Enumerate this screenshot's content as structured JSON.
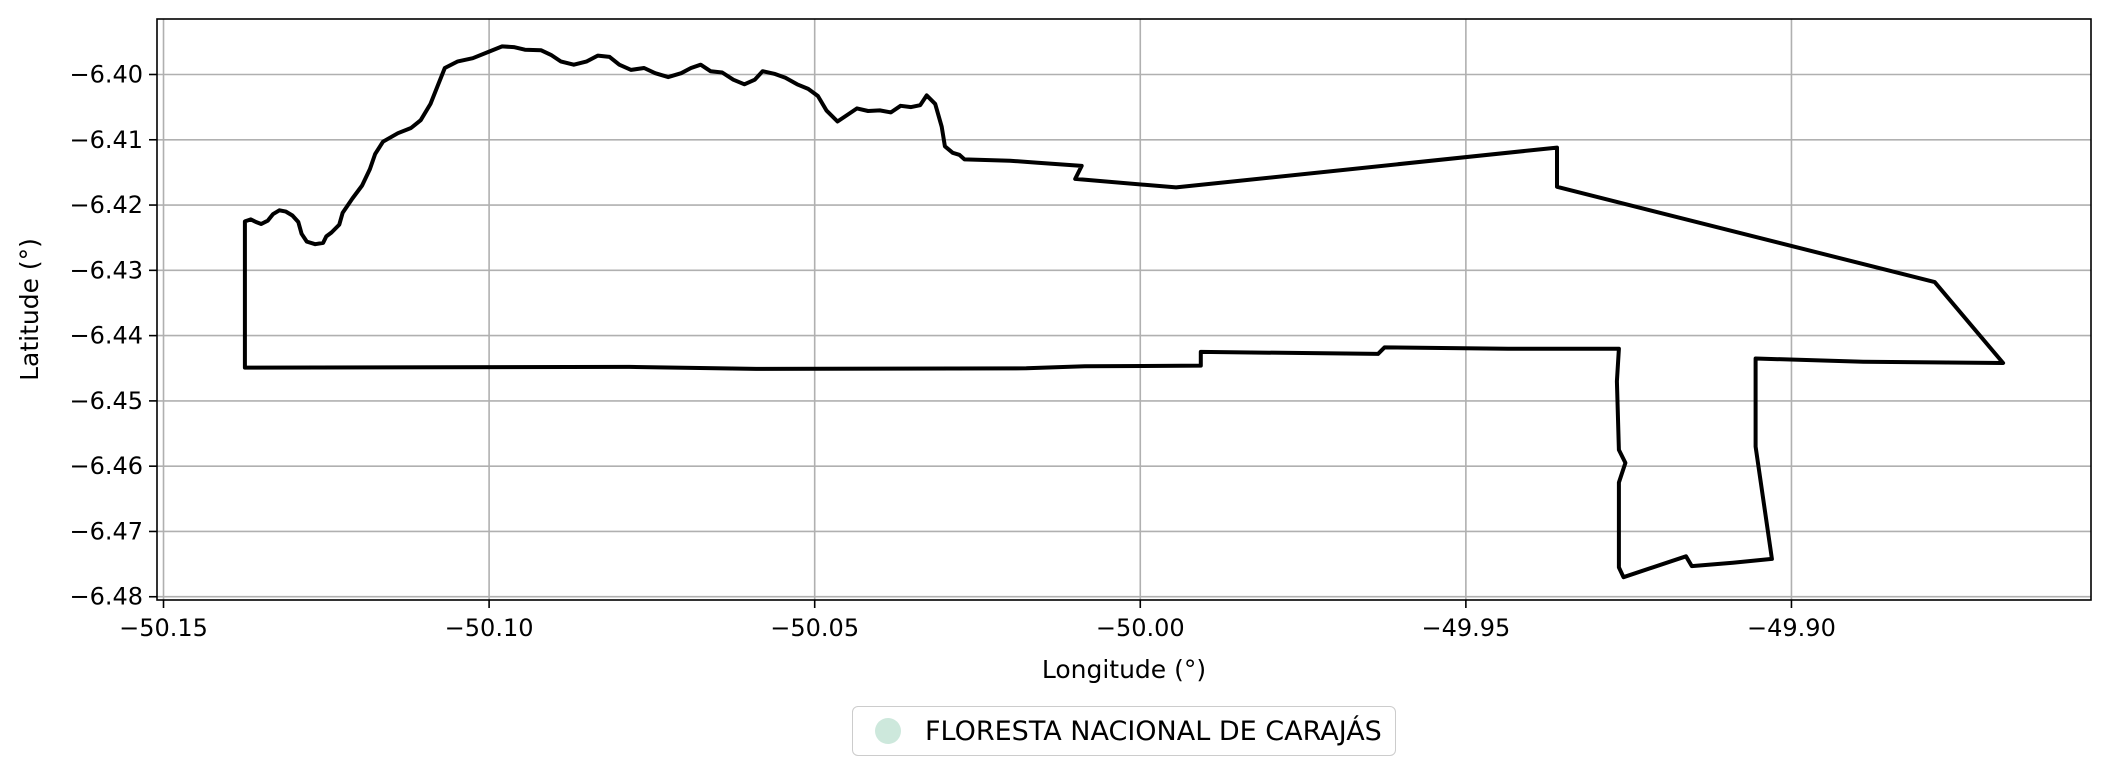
{
  "chart_data": {
    "type": "map",
    "title": "",
    "xlabel": "Longitude (°)",
    "ylabel": "Latitude (°)",
    "xlim": [
      -50.151,
      -49.854
    ],
    "ylim": [
      -6.4805,
      -6.3915
    ],
    "x_ticks": [
      -50.15,
      -50.1,
      -50.05,
      -50.0,
      -49.95,
      -49.9
    ],
    "x_tick_labels": [
      "−50.15",
      "−50.10",
      "−50.05",
      "−50.00",
      "−49.95",
      "−49.90"
    ],
    "y_ticks": [
      -6.4,
      -6.41,
      -6.42,
      -6.43,
      -6.44,
      -6.45,
      -6.46,
      -6.47,
      -6.48
    ],
    "y_tick_labels": [
      "−6.40",
      "−6.41",
      "−6.42",
      "−6.43",
      "−6.44",
      "−6.45",
      "−6.46",
      "−6.47",
      "−6.48"
    ],
    "grid": true,
    "legend_position": "bottom-center",
    "outline_color": "#000000",
    "grid_color": "#b0b0b0",
    "series": [
      {
        "name": "FLORESTA NACIONAL DE CARAJÁS",
        "color": "#cde8dc",
        "boundary": [
          [
            -50.1375,
            -6.4225
          ],
          [
            -50.1366,
            -6.4222
          ],
          [
            -50.1358,
            -6.4226
          ],
          [
            -50.135,
            -6.4229
          ],
          [
            -50.134,
            -6.4224
          ],
          [
            -50.1332,
            -6.4214
          ],
          [
            -50.1322,
            -6.4208
          ],
          [
            -50.1312,
            -6.421
          ],
          [
            -50.1302,
            -6.4216
          ],
          [
            -50.1293,
            -6.4226
          ],
          [
            -50.1288,
            -6.4244
          ],
          [
            -50.128,
            -6.4256
          ],
          [
            -50.1267,
            -6.426
          ],
          [
            -50.1255,
            -6.4258
          ],
          [
            -50.125,
            -6.4248
          ],
          [
            -50.1242,
            -6.4242
          ],
          [
            -50.123,
            -6.423
          ],
          [
            -50.1225,
            -6.4212
          ],
          [
            -50.121,
            -6.419
          ],
          [
            -50.1195,
            -6.417
          ],
          [
            -50.1183,
            -6.4145
          ],
          [
            -50.1175,
            -6.4122
          ],
          [
            -50.1163,
            -6.4103
          ],
          [
            -50.114,
            -6.409
          ],
          [
            -50.112,
            -6.4082
          ],
          [
            -50.1105,
            -6.407
          ],
          [
            -50.109,
            -6.4045
          ],
          [
            -50.1078,
            -6.4015
          ],
          [
            -50.1068,
            -6.399
          ],
          [
            -50.1048,
            -6.398
          ],
          [
            -50.1025,
            -6.3975
          ],
          [
            -50.1,
            -6.3965
          ],
          [
            -50.098,
            -6.3957
          ],
          [
            -50.0962,
            -6.3958
          ],
          [
            -50.0945,
            -6.3962
          ],
          [
            -50.092,
            -6.3963
          ],
          [
            -50.0905,
            -6.397
          ],
          [
            -50.089,
            -6.398
          ],
          [
            -50.087,
            -6.3985
          ],
          [
            -50.085,
            -6.398
          ],
          [
            -50.0833,
            -6.3971
          ],
          [
            -50.0815,
            -6.3973
          ],
          [
            -50.08,
            -6.3985
          ],
          [
            -50.0782,
            -6.3993
          ],
          [
            -50.0762,
            -6.399
          ],
          [
            -50.0745,
            -6.3998
          ],
          [
            -50.0725,
            -6.4004
          ],
          [
            -50.0705,
            -6.3998
          ],
          [
            -50.069,
            -6.399
          ],
          [
            -50.0675,
            -6.3985
          ],
          [
            -50.066,
            -6.3995
          ],
          [
            -50.0642,
            -6.3997
          ],
          [
            -50.0625,
            -6.4008
          ],
          [
            -50.0608,
            -6.4015
          ],
          [
            -50.0592,
            -6.4008
          ],
          [
            -50.058,
            -6.3995
          ],
          [
            -50.0562,
            -6.3999
          ],
          [
            -50.0545,
            -6.4005
          ],
          [
            -50.0527,
            -6.4015
          ],
          [
            -50.051,
            -6.4022
          ],
          [
            -50.0495,
            -6.4033
          ],
          [
            -50.0482,
            -6.4055
          ],
          [
            -50.0465,
            -6.4072
          ],
          [
            -50.045,
            -6.4062
          ],
          [
            -50.0435,
            -6.4052
          ],
          [
            -50.0418,
            -6.4056
          ],
          [
            -50.04,
            -6.4055
          ],
          [
            -50.0383,
            -6.4058
          ],
          [
            -50.0368,
            -6.4048
          ],
          [
            -50.0352,
            -6.405
          ],
          [
            -50.0338,
            -6.4047
          ],
          [
            -50.0328,
            -6.4032
          ],
          [
            -50.0315,
            -6.4045
          ],
          [
            -50.0305,
            -6.408
          ],
          [
            -50.03,
            -6.411
          ],
          [
            -50.0288,
            -6.412
          ],
          [
            -50.0278,
            -6.4123
          ],
          [
            -50.027,
            -6.413
          ],
          [
            -50.02,
            -6.4132
          ],
          [
            -50.016,
            -6.4135
          ],
          [
            -50.009,
            -6.414
          ],
          [
            -50.01,
            -6.416
          ],
          [
            -49.9945,
            -6.4173
          ],
          [
            -49.936,
            -6.4112
          ],
          [
            -49.936,
            -6.4172
          ],
          [
            -49.878,
            -6.4318
          ],
          [
            -49.8675,
            -6.4442
          ],
          [
            -49.889,
            -6.444
          ],
          [
            -49.9055,
            -6.4435
          ],
          [
            -49.9055,
            -6.457
          ],
          [
            -49.903,
            -6.4742
          ],
          [
            -49.909,
            -6.4748
          ],
          [
            -49.9153,
            -6.4753
          ],
          [
            -49.9162,
            -6.4738
          ],
          [
            -49.9258,
            -6.477
          ],
          [
            -49.9265,
            -6.4755
          ],
          [
            -49.9265,
            -6.4625
          ],
          [
            -49.9255,
            -6.4595
          ],
          [
            -49.9265,
            -6.4575
          ],
          [
            -49.9268,
            -6.447
          ],
          [
            -49.9265,
            -6.442
          ],
          [
            -49.9435,
            -6.442
          ],
          [
            -49.9625,
            -6.4418
          ],
          [
            -49.9635,
            -6.4428
          ],
          [
            -49.9907,
            -6.4425
          ],
          [
            -49.9907,
            -6.4446
          ],
          [
            -50.0085,
            -6.4447
          ],
          [
            -50.0175,
            -6.445
          ],
          [
            -50.059,
            -6.4451
          ],
          [
            -50.0785,
            -6.4448
          ],
          [
            -50.1375,
            -6.4449
          ],
          [
            -50.1375,
            -6.4225
          ]
        ]
      }
    ]
  }
}
